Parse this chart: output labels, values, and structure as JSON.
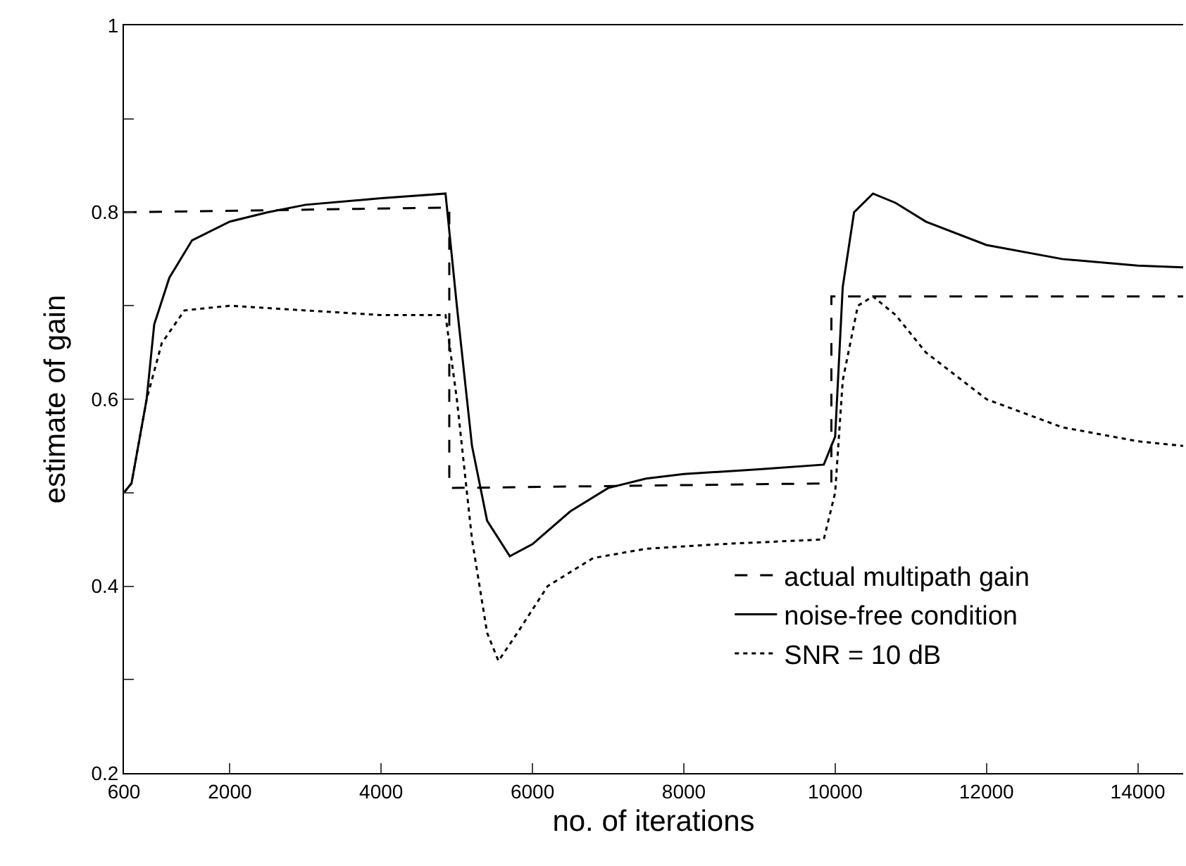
{
  "chart_data": {
    "type": "line",
    "xlabel": "no. of iterations",
    "ylabel": "estimate of gain",
    "xlim": [
      600,
      14600
    ],
    "xticks": [
      600,
      2000,
      4000,
      6000,
      8000,
      10000,
      12000,
      14000
    ],
    "ylim": [
      0.2,
      1
    ],
    "yticks": [
      0.2,
      {
        "value": 0.3,
        "label": null
      },
      0.4,
      {
        "value": 0.5,
        "label": null
      },
      0.6,
      {
        "value": 0.7,
        "label": null
      },
      0.8,
      {
        "value": 0.9,
        "label": null
      },
      1
    ],
    "grid": false,
    "legend": "bottom right",
    "marker": "none",
    "series": [
      {
        "name": "actual multipath gain",
        "color": "#000000",
        "line_style": "dashed",
        "x": [
          600,
          4900,
          4900,
          9950,
          9950,
          14600
        ],
        "values": [
          0.8,
          0.805,
          0.505,
          0.51,
          0.71,
          0.71
        ]
      },
      {
        "name": "noise-free condition",
        "color": "#000000",
        "line_style": "solid",
        "x": [
          600,
          700,
          900,
          1000,
          1200,
          1500,
          2000,
          2500,
          3000,
          4000,
          4850,
          5000,
          5200,
          5400,
          5700,
          6000,
          6500,
          7000,
          7500,
          8000,
          9000,
          9850,
          10000,
          10100,
          10250,
          10500,
          10800,
          11200,
          12000,
          13000,
          14000,
          14600
        ],
        "values": [
          0.5,
          0.51,
          0.6,
          0.68,
          0.73,
          0.77,
          0.79,
          0.8,
          0.808,
          0.815,
          0.82,
          0.7,
          0.55,
          0.47,
          0.432,
          0.445,
          0.48,
          0.505,
          0.515,
          0.52,
          0.525,
          0.53,
          0.56,
          0.72,
          0.8,
          0.82,
          0.81,
          0.79,
          0.765,
          0.75,
          0.743,
          0.741
        ]
      },
      {
        "name": "SNR = 10 dB",
        "color": "#000000",
        "line_style": "dotted",
        "x": [
          600,
          700,
          900,
          1100,
          1400,
          2000,
          3000,
          4000,
          4850,
          5000,
          5200,
          5400,
          5550,
          5800,
          6200,
          6800,
          7500,
          8500,
          9850,
          10000,
          10100,
          10300,
          10500,
          10800,
          11200,
          12000,
          13000,
          14000,
          14600
        ],
        "values": [
          0.5,
          0.51,
          0.6,
          0.66,
          0.695,
          0.7,
          0.695,
          0.69,
          0.69,
          0.6,
          0.45,
          0.35,
          0.32,
          0.35,
          0.4,
          0.43,
          0.44,
          0.445,
          0.45,
          0.5,
          0.62,
          0.7,
          0.71,
          0.69,
          0.65,
          0.6,
          0.57,
          0.555,
          0.55
        ]
      }
    ]
  }
}
